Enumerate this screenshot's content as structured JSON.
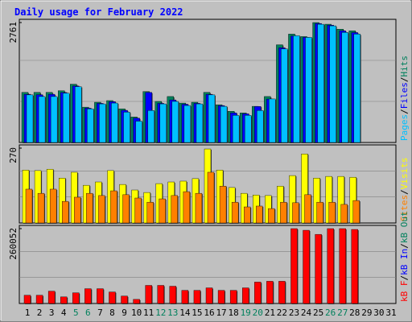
{
  "chart_data": {
    "type": "bar",
    "title": "Daily usage for February 2022",
    "legend_separator": "/",
    "categories": [
      "1",
      "2",
      "3",
      "4",
      "5",
      "6",
      "7",
      "8",
      "9",
      "10",
      "11",
      "12",
      "13",
      "14",
      "15",
      "16",
      "17",
      "18",
      "19",
      "20",
      "21",
      "22",
      "23",
      "24",
      "25",
      "26",
      "27",
      "28",
      "29",
      "30",
      "31"
    ],
    "category_colors": [
      "#000000",
      "#000000",
      "#000000",
      "#000000",
      "#00805c",
      "#00805c",
      "#000000",
      "#000000",
      "#000000",
      "#000000",
      "#000000",
      "#00805c",
      "#00805c",
      "#000000",
      "#000000",
      "#000000",
      "#000000",
      "#000000",
      "#00805c",
      "#00805c",
      "#000000",
      "#000000",
      "#000000",
      "#000000",
      "#000000",
      "#00805c",
      "#00805c",
      "#000000",
      "#000000",
      "#000000",
      "#000000"
    ],
    "panels": [
      {
        "ylim": [
          0,
          2761
        ],
        "yticks": [
          2761
        ],
        "series": [
          {
            "name": "Hits",
            "color": "#00805c",
            "values": [
              1153,
              1153,
              1153,
              1191,
              1342,
              813,
              926,
              964,
              775,
              586,
              1172,
              945,
              1058,
              907,
              926,
              1153,
              869,
              718,
              680,
              832,
              1058,
              2249,
              2495,
              2438,
              2761,
              2723,
              2608,
              2570,
              null,
              null,
              null
            ]
          },
          {
            "name": "Files",
            "color": "#0000ff",
            "values": [
              1110,
              1100,
              1110,
              1150,
              1300,
              790,
              900,
              940,
              740,
              560,
              1153,
              900,
              980,
              880,
              900,
              1110,
              850,
              680,
              660,
              830,
              1000,
              2180,
              2450,
              2420,
              2740,
              2700,
              2570,
              2530,
              null,
              null,
              null
            ]
          },
          {
            "name": "Pages",
            "color": "#00c0ff",
            "values": [
              1096,
              1058,
              1058,
              1134,
              1285,
              775,
              888,
              907,
              699,
              491,
              737,
              888,
              945,
              851,
              888,
              1096,
              832,
              624,
              624,
              737,
              1002,
              2155,
              2457,
              2419,
              2722,
              2685,
              2533,
              2495,
              null,
              null,
              null
            ]
          }
        ]
      },
      {
        "ylim": [
          0,
          270
        ],
        "yticks": [
          270
        ],
        "series": [
          {
            "name": "Visits",
            "color": "#ffff00",
            "values": [
              191,
              189,
              194,
              162,
              183,
              136,
              148,
              189,
              139,
              119,
              110,
              142,
              148,
              151,
              160,
              267,
              191,
              128,
              107,
              101,
              99,
              133,
              171,
              249,
              162,
              168,
              168,
              165,
              null,
              null,
              null
            ]
          },
          {
            "name": "Sites",
            "color": "#ff8000",
            "values": [
              122,
              107,
              122,
              78,
              93,
              107,
              99,
              116,
              102,
              90,
              75,
              87,
              99,
              113,
              107,
              183,
              133,
              75,
              58,
              61,
              52,
              75,
              73,
              102,
              75,
              75,
              67,
              81,
              null,
              null,
              null
            ]
          }
        ]
      },
      {
        "ylim": [
          0,
          260052
        ],
        "yticks": [
          260052
        ],
        "series": [
          {
            "name": "kB F",
            "color": "#ff0000",
            "values": [
              28580,
              28580,
              42870,
              22864,
              37154,
              51444,
              51444,
              40012,
              25722,
              14290,
              62876,
              62876,
              60018,
              45728,
              45728,
              54302,
              45728,
              45728,
              54302,
              74308,
              77166,
              77166,
              260052,
              254362,
              240072,
              260052,
              260052,
              257220,
              null,
              null,
              null
            ]
          }
        ],
        "extra_labels": [
          {
            "name": "kB In",
            "color": "#0000ff"
          },
          {
            "name": "kB Out",
            "color": "#00805c"
          }
        ]
      }
    ]
  }
}
